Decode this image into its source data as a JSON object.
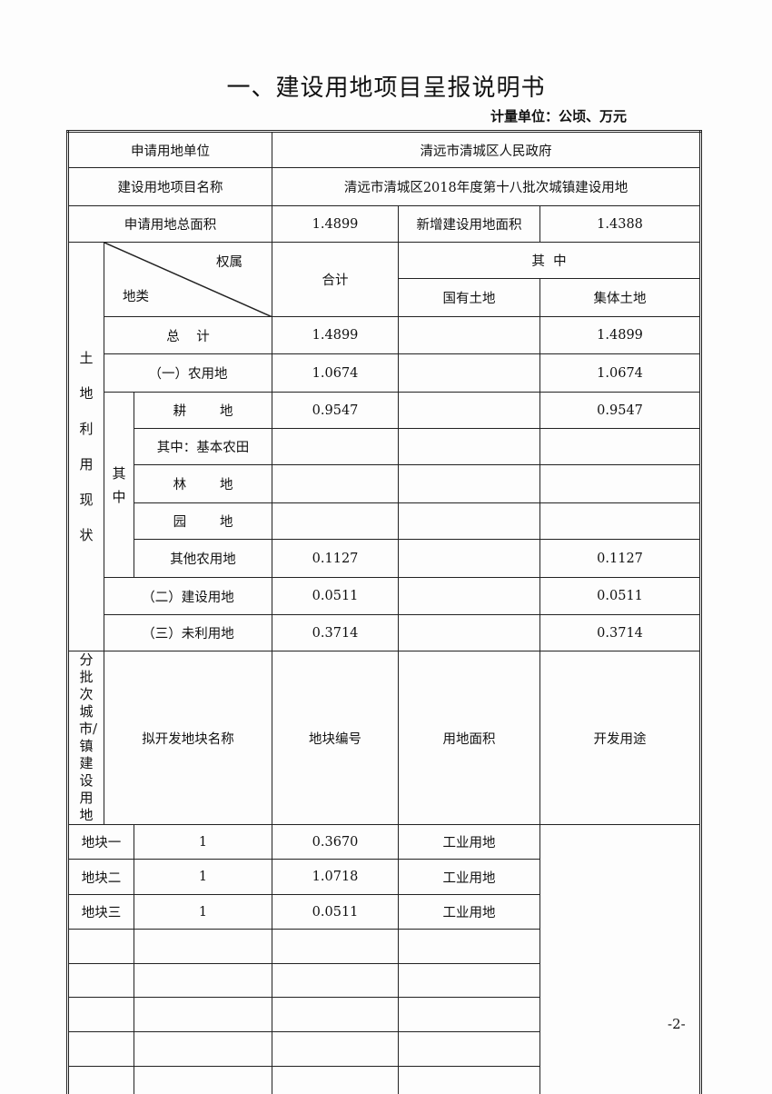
{
  "title": "一、建设用地项目呈报说明书",
  "unit": "计量单位：公顷、万元",
  "applicant": {
    "label": "申请用地单位",
    "value": "清远市清城区人民政府"
  },
  "project": {
    "label": "建设用地项目名称",
    "value": "清远市清城区2018年度第十八批次城镇建设用地"
  },
  "area": {
    "label": "申请用地总面积",
    "value": "1.4899",
    "new_label": "新增建设用地面积",
    "new_value": "1.4388"
  },
  "land_use": {
    "side_label": "土地利用现状",
    "header": {
      "ownership": "权属",
      "land_type": "地类",
      "total": "合计",
      "of_which": "其  中",
      "state": "国有土地",
      "collective": "集体土地"
    },
    "of_which_label": "其中",
    "rows": [
      {
        "label": "总    计",
        "total": "1.4899",
        "state": "",
        "collective": "1.4899"
      },
      {
        "label": "（一）农用地",
        "total": "1.0674",
        "state": "",
        "collective": "1.0674"
      },
      {
        "label": "耕        地",
        "total": "0.9547",
        "state": "",
        "collective": "0.9547"
      },
      {
        "label": "其中：基本农田",
        "total": "",
        "state": "",
        "collective": ""
      },
      {
        "label": "林        地",
        "total": "",
        "state": "",
        "collective": ""
      },
      {
        "label": "园        地",
        "total": "",
        "state": "",
        "collective": ""
      },
      {
        "label": "其他农用地",
        "total": "0.1127",
        "state": "",
        "collective": "0.1127"
      },
      {
        "label": "（二）建设用地",
        "total": "0.0511",
        "state": "",
        "collective": "0.0511"
      },
      {
        "label": "（三）未利用地",
        "total": "0.3714",
        "state": "",
        "collective": "0.3714"
      }
    ]
  },
  "parcels": {
    "side_label": "分批次城市/镇建设用地",
    "headers": [
      "拟开发地块名称",
      "地块编号",
      "用地面积",
      "开发用途"
    ],
    "rows": [
      [
        "地块一",
        "1",
        "0.3670",
        "工业用地"
      ],
      [
        "地块二",
        "1",
        "1.0718",
        "工业用地"
      ],
      [
        "地块三",
        "1",
        "0.0511",
        "工业用地"
      ],
      [
        "",
        "",
        "",
        ""
      ],
      [
        "",
        "",
        "",
        ""
      ],
      [
        "",
        "",
        "",
        ""
      ],
      [
        "",
        "",
        "",
        ""
      ],
      [
        "",
        "",
        "",
        ""
      ],
      [
        "",
        "",
        "",
        ""
      ]
    ]
  },
  "page_number": "-2-"
}
